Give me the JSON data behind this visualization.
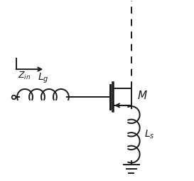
{
  "bg_color": "#ffffff",
  "line_color": "#1a1a1a",
  "fig_width": 2.73,
  "fig_height": 2.54,
  "dpi": 100,
  "Lg_label": "$L_g$",
  "Ls_label": "$L_s$",
  "M_label": "$M$",
  "Zin_label": "$Z_{in}$"
}
